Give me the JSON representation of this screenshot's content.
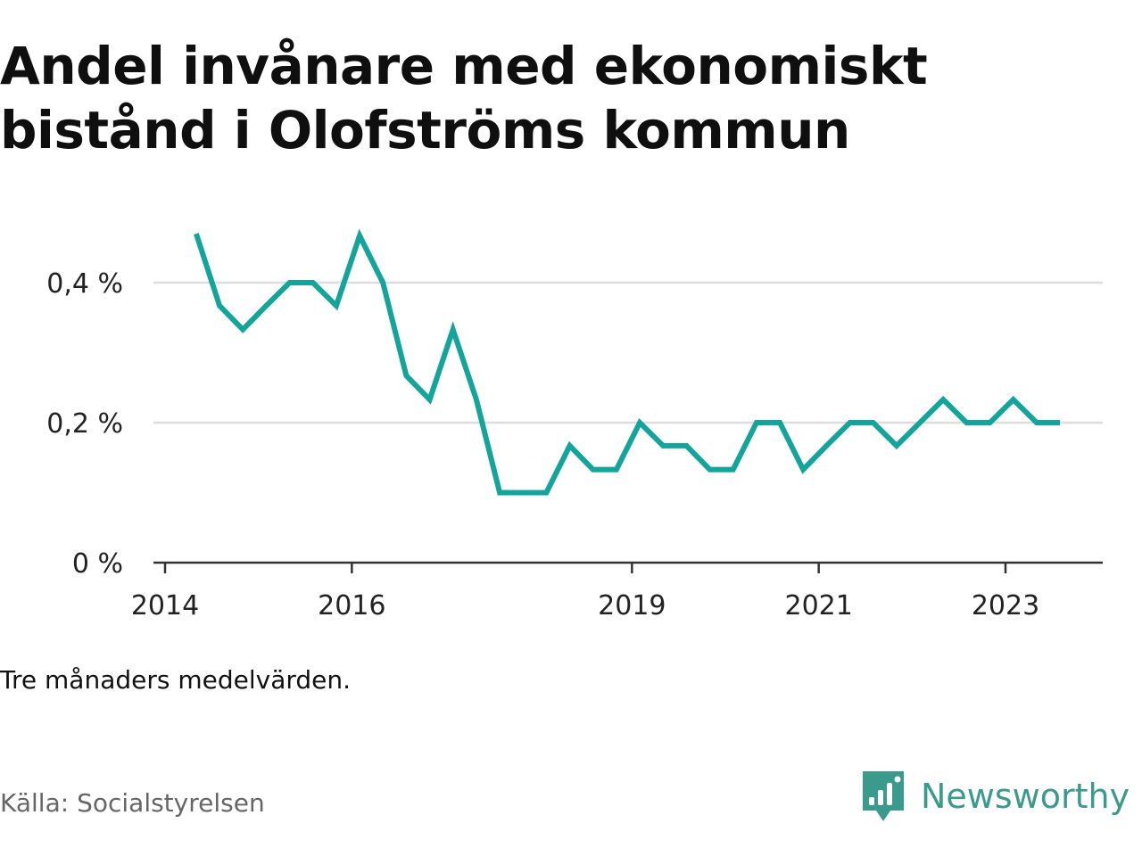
{
  "title": "Andel invånare med ekonomiskt bistånd i Olofströms kommun",
  "note": "Tre månaders medelvärden.",
  "source": "Källa: Socialstyrelsen",
  "brand": {
    "name": "Newsworthy",
    "logo_icon": "bar-chart-speech-bubble-icon"
  },
  "colors": {
    "line": "#13a49b",
    "grid": "#dddddd",
    "axis": "#333333",
    "brand": "#3a9a8c"
  },
  "chart_data": {
    "type": "line",
    "title": "Andel invånare med ekonomiskt bistånd i Olofströms kommun",
    "xlabel": "",
    "ylabel": "",
    "x_ticks": [
      "2014",
      "2016",
      "2019",
      "2021",
      "2023"
    ],
    "y_ticks": [
      "0 %",
      "0,2 %",
      "0,4 %"
    ],
    "ylim": [
      0,
      0.5
    ],
    "grid": "horizontal",
    "series": [
      {
        "values": [
          [
            "2014-05",
            0.47
          ],
          [
            "2014-08",
            0.367
          ],
          [
            "2014-11",
            0.333
          ],
          [
            "2015-02",
            0.367
          ],
          [
            "2015-05",
            0.4
          ],
          [
            "2015-08",
            0.4
          ],
          [
            "2015-11",
            0.367
          ],
          [
            "2016-02",
            0.467
          ],
          [
            "2016-05",
            0.4
          ],
          [
            "2016-08",
            0.267
          ],
          [
            "2016-11",
            0.233
          ],
          [
            "2017-02",
            0.333
          ],
          [
            "2017-05",
            0.233
          ],
          [
            "2017-08",
            0.1
          ],
          [
            "2017-11",
            0.1
          ],
          [
            "2018-02",
            0.1
          ],
          [
            "2018-05",
            0.167
          ],
          [
            "2018-08",
            0.133
          ],
          [
            "2018-11",
            0.133
          ],
          [
            "2019-02",
            0.2
          ],
          [
            "2019-05",
            0.167
          ],
          [
            "2019-08",
            0.167
          ],
          [
            "2019-11",
            0.133
          ],
          [
            "2020-02",
            0.133
          ],
          [
            "2020-05",
            0.2
          ],
          [
            "2020-08",
            0.2
          ],
          [
            "2020-11",
            0.133
          ],
          [
            "2021-02",
            0.167
          ],
          [
            "2021-05",
            0.2
          ],
          [
            "2021-08",
            0.2
          ],
          [
            "2021-11",
            0.167
          ],
          [
            "2022-02",
            0.2
          ],
          [
            "2022-05",
            0.233
          ],
          [
            "2022-08",
            0.2
          ],
          [
            "2022-11",
            0.2
          ],
          [
            "2023-02",
            0.233
          ],
          [
            "2023-05",
            0.2
          ],
          [
            "2023-08",
            0.2
          ]
        ]
      }
    ]
  }
}
